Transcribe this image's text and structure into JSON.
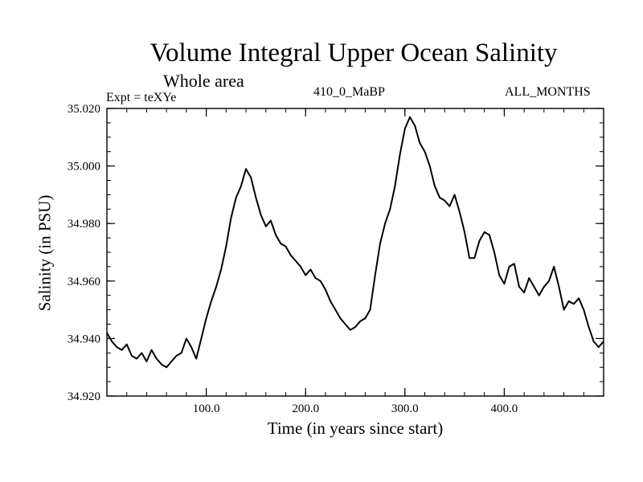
{
  "chart_data": {
    "type": "line",
    "title": "Volume Integral Upper Ocean Salinity",
    "subtitle": "Whole area",
    "experiment_label": "Expt = teXYe",
    "run_label": "410_0_MaBP",
    "months_label": "ALL_MONTHS",
    "xlabel": "Time (in years since start)",
    "ylabel": "Salinity (in PSU)",
    "xlim": [
      0,
      500
    ],
    "ylim": [
      34.92,
      35.02
    ],
    "x_ticks": [
      100,
      200,
      300,
      400
    ],
    "x_tick_labels": [
      "100.0",
      "200.0",
      "300.0",
      "400.0"
    ],
    "y_ticks": [
      34.92,
      34.94,
      34.96,
      34.98,
      35.0,
      35.02
    ],
    "y_tick_labels": [
      "34.920",
      "34.940",
      "34.960",
      "34.980",
      "35.000",
      "35.020"
    ],
    "grid": false,
    "line_color": "#000000",
    "series": [
      {
        "x": [
          0,
          5,
          10,
          15,
          20,
          25,
          30,
          35,
          40,
          45,
          50,
          55,
          60,
          65,
          70,
          75,
          80,
          85,
          90,
          95,
          100,
          105,
          110,
          115,
          120,
          125,
          130,
          135,
          140,
          145,
          150,
          155,
          160,
          165,
          170,
          175,
          180,
          185,
          190,
          195,
          200,
          205,
          210,
          215,
          220,
          225,
          230,
          235,
          240,
          245,
          250,
          255,
          260,
          265,
          270,
          275,
          280,
          285,
          290,
          295,
          300,
          305,
          310,
          315,
          320,
          325,
          330,
          335,
          340,
          345,
          350,
          355,
          360,
          365,
          370,
          375,
          380,
          385,
          390,
          395,
          400,
          405,
          410,
          415,
          420,
          425,
          430,
          435,
          440,
          445,
          450,
          455,
          460,
          465,
          470,
          475,
          480,
          485,
          490,
          495,
          500
        ],
        "values": [
          34.942,
          34.939,
          34.937,
          34.936,
          34.938,
          34.934,
          34.933,
          34.935,
          34.932,
          34.936,
          34.933,
          34.931,
          34.93,
          34.932,
          34.934,
          34.935,
          34.94,
          34.937,
          34.933,
          34.94,
          34.947,
          34.953,
          34.958,
          34.964,
          34.972,
          34.982,
          34.989,
          34.993,
          34.999,
          34.996,
          34.989,
          34.983,
          34.979,
          34.981,
          34.976,
          34.973,
          34.972,
          34.969,
          34.967,
          34.965,
          34.962,
          34.964,
          34.961,
          34.96,
          34.957,
          34.953,
          34.95,
          34.947,
          34.945,
          34.943,
          34.944,
          34.946,
          34.947,
          34.95,
          34.962,
          34.973,
          34.98,
          34.985,
          34.993,
          35.004,
          35.013,
          35.017,
          35.014,
          35.008,
          35.005,
          35.0,
          34.993,
          34.989,
          34.988,
          34.986,
          34.99,
          34.984,
          34.977,
          34.968,
          34.968,
          34.974,
          34.977,
          34.976,
          34.97,
          34.962,
          34.959,
          34.965,
          34.966,
          34.958,
          34.956,
          34.961,
          34.958,
          34.955,
          34.958,
          34.96,
          34.965,
          34.958,
          34.95,
          34.953,
          34.952,
          34.954,
          34.95,
          34.944,
          34.939,
          34.937,
          34.939
        ]
      }
    ]
  }
}
